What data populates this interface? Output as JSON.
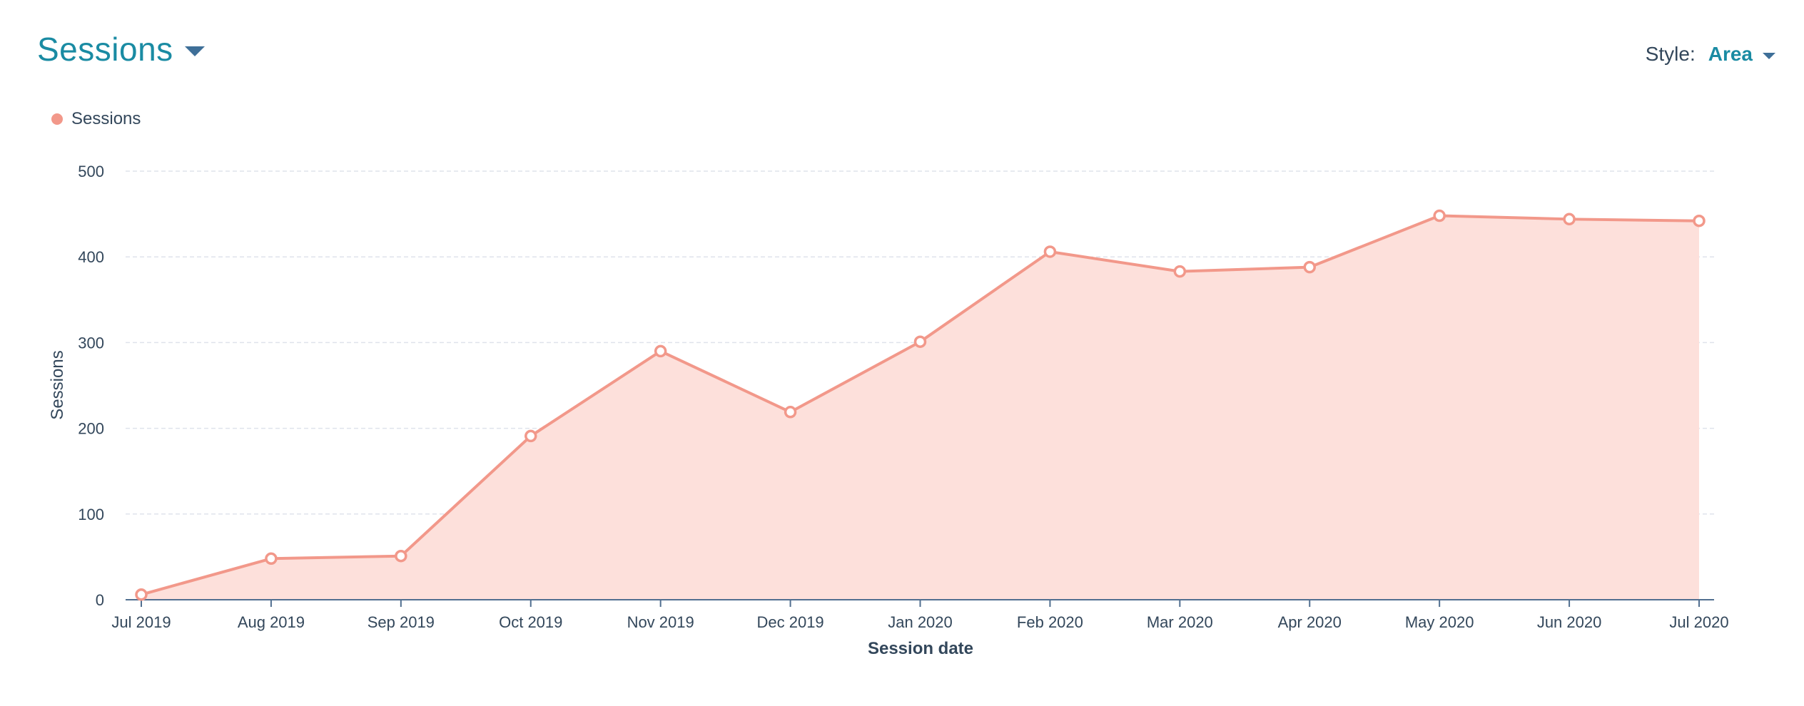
{
  "header": {
    "title": "Sessions",
    "caret_icon": "chevron-down-icon"
  },
  "style_control": {
    "label": "Style:",
    "value": "Area"
  },
  "legend": {
    "items": [
      {
        "label": "Sessions",
        "color": "#f2988a"
      }
    ]
  },
  "colors": {
    "accent": "#1a8ba3",
    "series_line": "#f2988a",
    "series_fill": "#fde0db",
    "axis": "#516f90",
    "grid": "#dfe3eb",
    "text": "#33475b"
  },
  "chart_data": {
    "type": "area",
    "title": "",
    "xlabel": "Session date",
    "ylabel": "Sessions",
    "ylim": [
      0,
      500
    ],
    "yticks": [
      0,
      100,
      200,
      300,
      400,
      500
    ],
    "categories": [
      "Jul 2019",
      "Aug 2019",
      "Sep 2019",
      "Oct 2019",
      "Nov 2019",
      "Dec 2019",
      "Jan 2020",
      "Feb 2020",
      "Mar 2020",
      "Apr 2020",
      "May 2020",
      "Jun 2020",
      "Jul 2020"
    ],
    "series": [
      {
        "name": "Sessions",
        "values": [
          6,
          48,
          51,
          191,
          290,
          219,
          301,
          406,
          383,
          388,
          448,
          444,
          442
        ]
      }
    ],
    "grid": true,
    "legend_position": "top-left"
  }
}
